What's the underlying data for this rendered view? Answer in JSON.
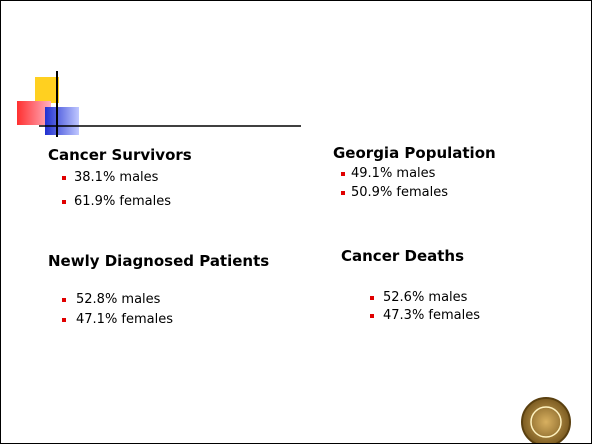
{
  "sections": [
    {
      "heading": "Cancer Survivors",
      "items": [
        "38.1% males",
        "61.9% females"
      ]
    },
    {
      "heading": "Georgia Population",
      "items": [
        "49.1% males",
        "50.9% females"
      ]
    },
    {
      "heading": "Newly Diagnosed Patients",
      "items": [
        "52.8% males",
        "47.1% females"
      ]
    },
    {
      "heading": "Cancer Deaths",
      "items": [
        "52.6% males",
        "47.3% females"
      ]
    }
  ]
}
